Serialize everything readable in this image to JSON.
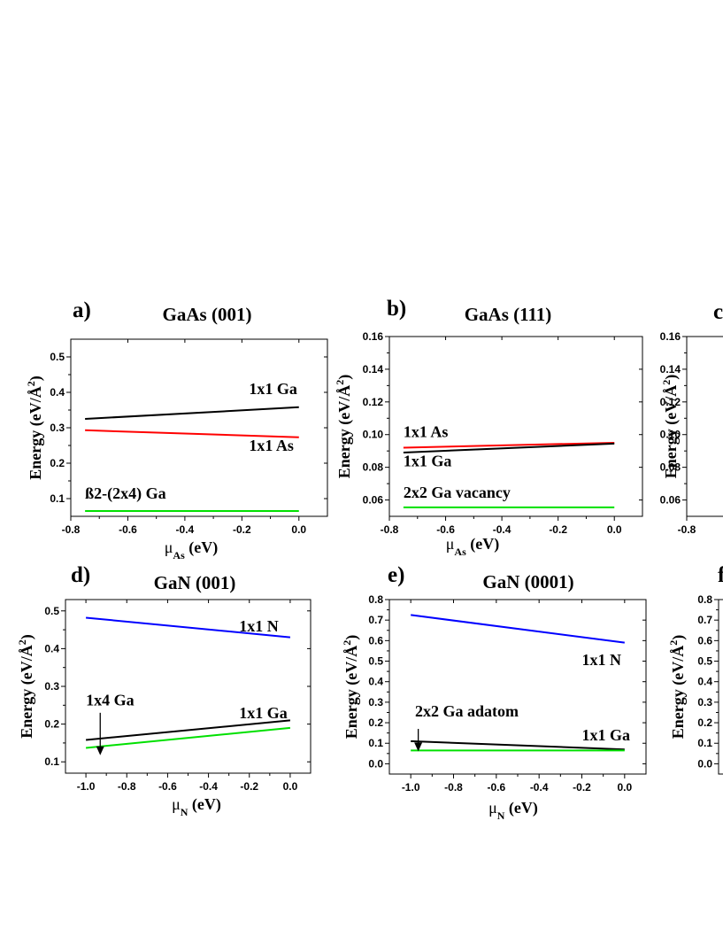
{
  "colors": {
    "black": "#000000",
    "red": "#ff0000",
    "green": "#00e000",
    "blue": "#0000ff"
  },
  "chart_data": [
    {
      "type": "line",
      "letter": "a)",
      "title": "GaAs (001)",
      "ylabel": "Energy (eV/Å",
      "ylabel_sup": "2",
      "ylabel_close": ")",
      "xlabel_mu": "μ",
      "xlabel_sub": "As",
      "xlabel_unit": " (eV)",
      "xlim": [
        -0.8,
        0.1
      ],
      "ylim": [
        0.05,
        0.55
      ],
      "xticks": [
        -0.8,
        -0.6,
        -0.4,
        -0.2,
        0.0
      ],
      "xtick_labels": [
        "-0.8",
        "-0.6",
        "-0.4",
        "-0.2",
        "0.0"
      ],
      "yticks": [
        0.1,
        0.2,
        0.3,
        0.4,
        0.5
      ],
      "ytick_labels": [
        "0.1",
        "0.2",
        "0.3",
        "0.4",
        "0.5"
      ],
      "series": [
        {
          "color": "black",
          "x": [
            -0.75,
            0.0
          ],
          "y": [
            0.325,
            0.358
          ]
        },
        {
          "color": "red",
          "x": [
            -0.75,
            0.0
          ],
          "y": [
            0.293,
            0.273
          ]
        },
        {
          "color": "green",
          "x": [
            -0.75,
            0.0
          ],
          "y": [
            0.065,
            0.065
          ]
        }
      ],
      "annotations": [
        {
          "text": "1x1 Ga",
          "x": -0.175,
          "y": 0.395
        },
        {
          "text": "1x1 As",
          "x": -0.175,
          "y": 0.235
        },
        {
          "text": "ß2-(2x4) Ga",
          "x": -0.75,
          "y": 0.1
        }
      ]
    },
    {
      "type": "line",
      "letter": "b)",
      "title": "GaAs (111)",
      "ylabel": "Energy (eV/Å",
      "ylabel_sup": "2",
      "ylabel_close": ")",
      "xlabel_mu": "μ",
      "xlabel_sub": "As",
      "xlabel_unit": " (eV)",
      "xlim": [
        -0.8,
        0.1
      ],
      "ylim": [
        0.05,
        0.16
      ],
      "xticks": [
        -0.8,
        -0.6,
        -0.4,
        -0.2,
        0.0
      ],
      "xtick_labels": [
        "-0.8",
        "-0.6",
        "-0.4",
        "-0.2",
        "0.0"
      ],
      "yticks": [
        0.06,
        0.08,
        0.1,
        0.12,
        0.14,
        0.16
      ],
      "ytick_labels": [
        "0.06",
        "0.08",
        "0.10",
        "0.12",
        "0.14",
        "0.16"
      ],
      "series": [
        {
          "color": "red",
          "x": [
            -0.75,
            0.0
          ],
          "y": [
            0.092,
            0.095
          ]
        },
        {
          "color": "black",
          "x": [
            -0.75,
            0.0
          ],
          "y": [
            0.089,
            0.0945
          ]
        },
        {
          "color": "green",
          "x": [
            -0.75,
            0.0
          ],
          "y": [
            0.0555,
            0.0555
          ]
        }
      ],
      "annotations": [
        {
          "text": "1x1 As",
          "x": -0.75,
          "y": 0.0985
        },
        {
          "text": "1x1 Ga",
          "x": -0.75,
          "y": 0.0805
        },
        {
          "text": "2x2 Ga vacancy",
          "x": -0.75,
          "y": 0.0615
        }
      ]
    },
    {
      "type": "line",
      "letter": "c",
      "title": "",
      "ylabel": "Energy (eV/Å",
      "ylabel_sup": "2",
      "ylabel_close": ")",
      "xlim": [
        -0.8,
        0.1
      ],
      "ylim": [
        0.05,
        0.16
      ],
      "xticks": [
        -0.8
      ],
      "xtick_labels": [
        "-0.8"
      ],
      "yticks": [
        0.06,
        0.08,
        0.1,
        0.12,
        0.14,
        0.16
      ],
      "ytick_labels": [
        "0.06",
        "0.08",
        "0.10",
        "0.12",
        "0.14",
        "0.16"
      ],
      "series": [],
      "annotations": []
    },
    {
      "type": "line",
      "letter": "d)",
      "title": "GaN (001)",
      "ylabel": "Energy (eV/Å",
      "ylabel_sup": "2",
      "ylabel_close": ")",
      "xlabel_mu": "μ",
      "xlabel_sub": "N",
      "xlabel_unit": " (eV)",
      "xlim": [
        -1.1,
        0.1
      ],
      "ylim": [
        0.07,
        0.53
      ],
      "xticks": [
        -1.0,
        -0.8,
        -0.6,
        -0.4,
        -0.2,
        0.0
      ],
      "xtick_labels": [
        "-1.0",
        "-0.8",
        "-0.6",
        "-0.4",
        "-0.2",
        "0.0"
      ],
      "yticks": [
        0.1,
        0.2,
        0.3,
        0.4,
        0.5
      ],
      "ytick_labels": [
        "0.1",
        "0.2",
        "0.3",
        "0.4",
        "0.5"
      ],
      "series": [
        {
          "color": "blue",
          "x": [
            -1.0,
            0.0
          ],
          "y": [
            0.482,
            0.43
          ]
        },
        {
          "color": "black",
          "x": [
            -1.0,
            0.0
          ],
          "y": [
            0.158,
            0.21
          ]
        },
        {
          "color": "green",
          "x": [
            -1.0,
            0.0
          ],
          "y": [
            0.137,
            0.19
          ]
        }
      ],
      "arrows": [
        {
          "x": -0.93,
          "y_from": 0.23,
          "y_to": 0.12
        }
      ],
      "annotations": [
        {
          "text": "1x1 N",
          "x": -0.25,
          "y": 0.445
        },
        {
          "text": "1x4 Ga",
          "x": -1.0,
          "y": 0.25
        },
        {
          "text": "1x1 Ga",
          "x": -0.25,
          "y": 0.215
        }
      ]
    },
    {
      "type": "line",
      "letter": "e)",
      "title": "GaN (0001)",
      "ylabel": "Energy (eV/Å",
      "ylabel_sup": "2",
      "ylabel_close": ")",
      "xlabel_mu": "μ",
      "xlabel_sub": "N",
      "xlabel_unit": " (eV)",
      "xlim": [
        -1.1,
        0.1
      ],
      "ylim": [
        -0.05,
        0.8
      ],
      "xticks": [
        -1.0,
        -0.8,
        -0.6,
        -0.4,
        -0.2,
        0.0
      ],
      "xtick_labels": [
        "-1.0",
        "-0.8",
        "-0.6",
        "-0.4",
        "-0.2",
        "0.0"
      ],
      "yticks": [
        0.0,
        0.1,
        0.2,
        0.3,
        0.4,
        0.5,
        0.6,
        0.7,
        0.8
      ],
      "ytick_labels": [
        "0.0",
        "0.1",
        "0.2",
        "0.3",
        "0.4",
        "0.5",
        "0.6",
        "0.7",
        "0.8"
      ],
      "series": [
        {
          "color": "blue",
          "x": [
            -1.0,
            0.0
          ],
          "y": [
            0.725,
            0.59
          ]
        },
        {
          "color": "black",
          "x": [
            -1.0,
            0.0
          ],
          "y": [
            0.11,
            0.07
          ]
        },
        {
          "color": "green",
          "x": [
            -1.0,
            0.0
          ],
          "y": [
            0.065,
            0.065
          ]
        }
      ],
      "arrows": [
        {
          "x": -0.965,
          "y_from": 0.17,
          "y_to": 0.065
        }
      ],
      "annotations": [
        {
          "text": "1x1 N",
          "x": -0.2,
          "y": 0.48
        },
        {
          "text": "2x2 Ga adatom",
          "x": -0.98,
          "y": 0.23
        },
        {
          "text": "1x1 Ga",
          "x": -0.2,
          "y": 0.115
        }
      ]
    },
    {
      "type": "line",
      "letter": "f",
      "title": "",
      "ylabel": "Energy (eV/Å",
      "ylabel_sup": "2",
      "ylabel_close": ")",
      "xlim": [
        -1.1,
        0.1
      ],
      "ylim": [
        -0.05,
        0.8
      ],
      "xticks": [],
      "xtick_labels": [],
      "yticks": [
        0.0,
        0.1,
        0.2,
        0.3,
        0.4,
        0.5,
        0.6,
        0.7,
        0.8
      ],
      "ytick_labels": [
        "0.0",
        "0.1",
        "0.2",
        "0.3",
        "0.4",
        "0.5",
        "0.6",
        "0.7",
        "0.8"
      ],
      "series": [],
      "annotations": []
    }
  ]
}
